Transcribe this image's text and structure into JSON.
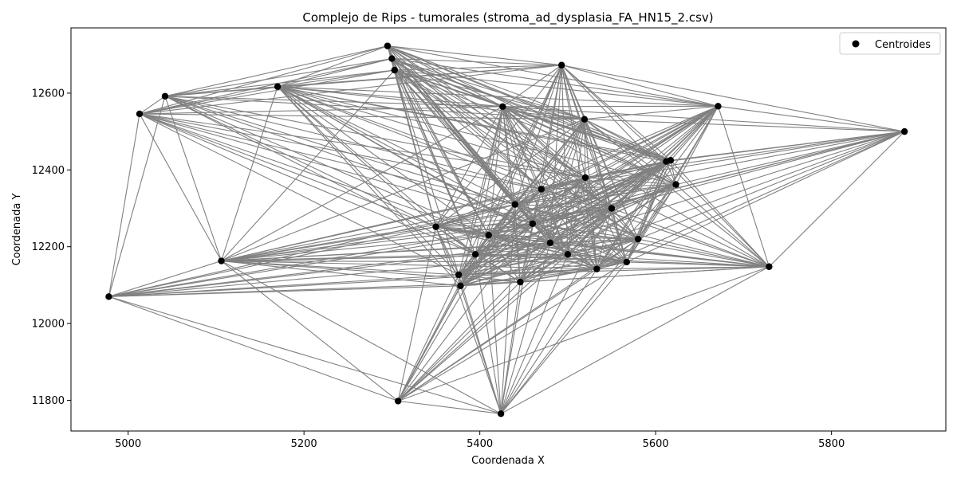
{
  "chart_data": {
    "type": "scatter",
    "title": "Complejo de Rips - tumorales (stroma_ad_dysplasia_FA_HN15_2.csv)",
    "xlabel": "Coordenada X",
    "ylabel": "Coordenada Y",
    "xlim": [
      4935,
      5930
    ],
    "ylim": [
      11720,
      12770
    ],
    "xticks": [
      5000,
      5200,
      5400,
      5600,
      5800
    ],
    "yticks": [
      11800,
      12000,
      12200,
      12400,
      12600
    ],
    "grid": false,
    "legend": {
      "position": "top-right",
      "label": "Centroides"
    },
    "colors": {
      "points": "#000000",
      "edges": "#808080"
    },
    "points": [
      {
        "x": 4978,
        "y": 12070
      },
      {
        "x": 5013,
        "y": 12546
      },
      {
        "x": 5042,
        "y": 12592
      },
      {
        "x": 5106,
        "y": 12163
      },
      {
        "x": 5170,
        "y": 12617
      },
      {
        "x": 5295,
        "y": 12723
      },
      {
        "x": 5300,
        "y": 12690
      },
      {
        "x": 5303,
        "y": 12660
      },
      {
        "x": 5307,
        "y": 11798
      },
      {
        "x": 5350,
        "y": 12252
      },
      {
        "x": 5376,
        "y": 12127
      },
      {
        "x": 5378,
        "y": 12098
      },
      {
        "x": 5424,
        "y": 11765
      },
      {
        "x": 5426,
        "y": 12565
      },
      {
        "x": 5446,
        "y": 12108
      },
      {
        "x": 5493,
        "y": 12673
      },
      {
        "x": 5519,
        "y": 12532
      },
      {
        "x": 5533,
        "y": 12142
      },
      {
        "x": 5567,
        "y": 12160
      },
      {
        "x": 5612,
        "y": 12422
      },
      {
        "x": 5617,
        "y": 12425
      },
      {
        "x": 5623,
        "y": 12362
      },
      {
        "x": 5671,
        "y": 12566
      },
      {
        "x": 5729,
        "y": 12148
      },
      {
        "x": 5883,
        "y": 12500
      },
      {
        "x": 5410,
        "y": 12230
      },
      {
        "x": 5460,
        "y": 12260
      },
      {
        "x": 5480,
        "y": 12210
      },
      {
        "x": 5550,
        "y": 12300
      },
      {
        "x": 5520,
        "y": 12380
      },
      {
        "x": 5440,
        "y": 12310
      },
      {
        "x": 5580,
        "y": 12220
      },
      {
        "x": 5395,
        "y": 12180
      },
      {
        "x": 5500,
        "y": 12180
      },
      {
        "x": 5470,
        "y": 12350
      }
    ]
  }
}
